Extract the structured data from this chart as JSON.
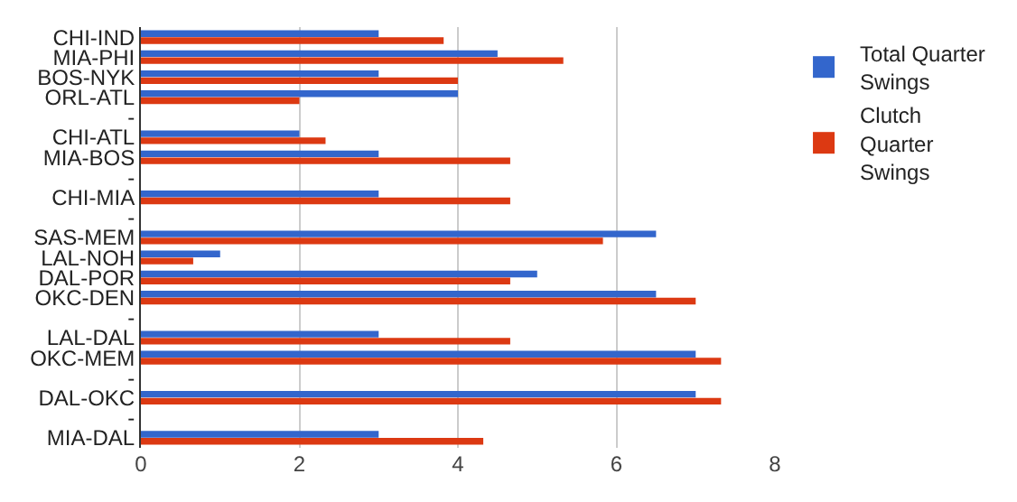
{
  "chart_data": {
    "type": "bar",
    "orientation": "horizontal",
    "categories": [
      "CHI-IND",
      "MIA-PHI",
      "BOS-NYK",
      "ORL-ATL",
      "-",
      "CHI-ATL",
      "MIA-BOS",
      "-",
      "CHI-MIA",
      "-",
      "SAS-MEM",
      "LAL-NOH",
      "DAL-POR",
      "OKC-DEN",
      "-",
      "LAL-DAL",
      "OKC-MEM",
      "-",
      "DAL-OKC",
      "-",
      "MIA-DAL"
    ],
    "series": [
      {
        "name": "Total Quarter Swings",
        "color": "#3366cc",
        "values": [
          3,
          4.5,
          3,
          4,
          null,
          2,
          3,
          null,
          3,
          null,
          6.5,
          1,
          5,
          6.5,
          null,
          3,
          7,
          null,
          7,
          null,
          3
        ]
      },
      {
        "name": "Clutch Quarter Swings",
        "color": "#dc3912",
        "values": [
          3.82,
          5.33,
          4,
          2,
          null,
          2.33,
          4.66,
          null,
          4.66,
          null,
          5.83,
          0.66,
          4.66,
          7,
          null,
          4.66,
          7.32,
          null,
          7.32,
          null,
          4.32
        ]
      }
    ],
    "xlim": [
      0,
      8
    ],
    "xticks": [
      0,
      2,
      4,
      6,
      8
    ],
    "grid": "x",
    "legend": "top right"
  }
}
